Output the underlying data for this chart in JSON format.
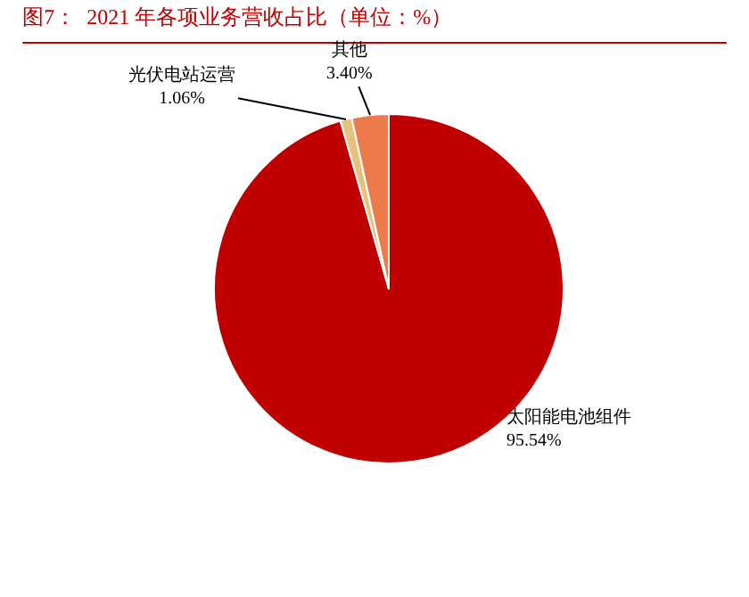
{
  "chart_data": {
    "type": "pie",
    "title": "图7：  2021 年各项业务营收占比（单位：%）",
    "categories": [
      "太阳能电池组件",
      "光伏电站运营",
      "其他"
    ],
    "values": [
      95.54,
      1.06,
      3.4
    ],
    "value_labels": [
      "95.54%",
      "1.06%",
      "3.40%"
    ],
    "colors": [
      "#c00000",
      "#e6c27a",
      "#ec7a4a"
    ],
    "legend": false
  }
}
